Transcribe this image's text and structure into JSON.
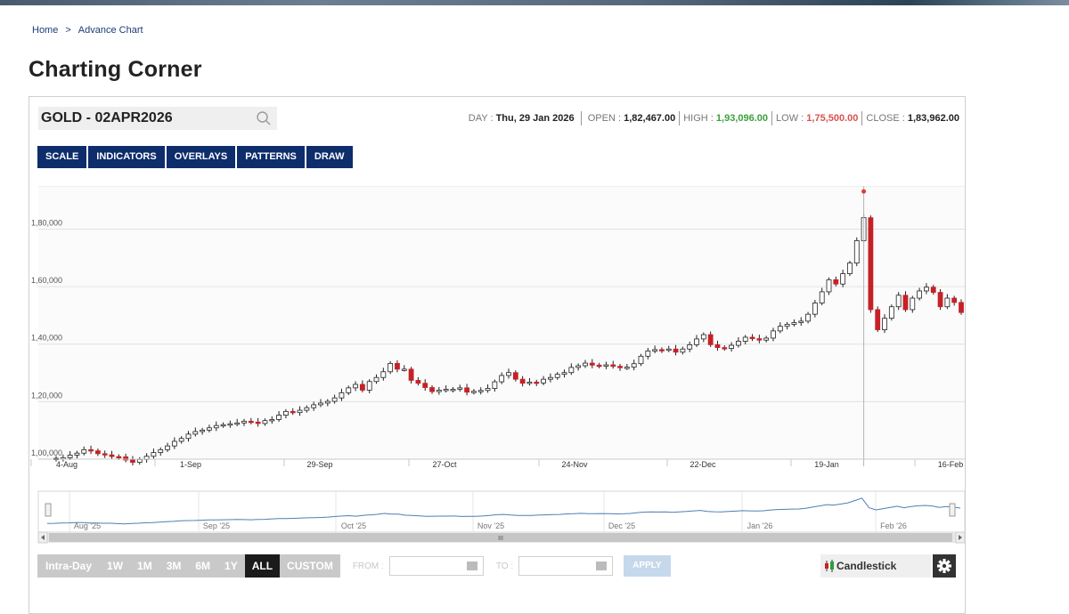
{
  "breadcrumb": {
    "home": "Home",
    "separator": ">",
    "current": "Advance Chart"
  },
  "page_title": "Charting Corner",
  "symbol": {
    "name": "GOLD - 02APR2026",
    "search_icon": "search-icon"
  },
  "ohlc": {
    "day_label": "DAY :",
    "day_value": "Thu, 29 Jan 2026",
    "open_label": "OPEN :",
    "open_value": "1,82,467.00",
    "high_label": "HIGH :",
    "high_value": "1,93,096.00",
    "low_label": "LOW :",
    "low_value": "1,75,500.00",
    "close_label": "CLOSE :",
    "close_value": "1,83,962.00",
    "high_color": "#3aa13a",
    "low_color": "#d9534f"
  },
  "toolbar": [
    "SCALE",
    "INDICATORS",
    "OVERLAYS",
    "PATTERNS",
    "DRAW"
  ],
  "range_buttons": [
    {
      "label": "Intra-Day",
      "active": false
    },
    {
      "label": "1W",
      "active": false
    },
    {
      "label": "1M",
      "active": false
    },
    {
      "label": "3M",
      "active": false
    },
    {
      "label": "6M",
      "active": false
    },
    {
      "label": "1Y",
      "active": false
    },
    {
      "label": "ALL",
      "active": true
    },
    {
      "label": "CUSTOM",
      "active": false
    }
  ],
  "from_label": "FROM :",
  "to_label": "TO :",
  "apply_label": "APPLY",
  "chart_type_label": "Candlestick",
  "colors": {
    "nav": "#0d2d6b",
    "up": "#ffffff",
    "down": "#c62127",
    "navigator": "#4e7fb1"
  },
  "chart_data": {
    "type": "candlestick",
    "y_ticks": [
      "1,00,000",
      "1,20,000",
      "1,40,000",
      "1,60,000",
      "1,80,000"
    ],
    "ylim": [
      100000,
      195000
    ],
    "x_ticks": [
      "4-Aug",
      "1-Sep",
      "29-Sep",
      "27-Oct",
      "24-Nov",
      "22-Dec",
      "19-Jan",
      "16-Feb"
    ],
    "navigator_ticks": [
      "Aug '25",
      "Sep '25",
      "Oct '25",
      "Nov '25",
      "Dec '25",
      "Jan '26",
      "Feb '26"
    ],
    "scrollbar_grip": "III",
    "closes": [
      100300,
      100500,
      101400,
      102100,
      103300,
      102900,
      101900,
      101500,
      100900,
      100800,
      99700,
      98900,
      99900,
      101000,
      102300,
      103300,
      104600,
      106200,
      107200,
      108700,
      109600,
      110100,
      110900,
      111700,
      112000,
      112300,
      112600,
      113200,
      112900,
      112400,
      113400,
      113800,
      115300,
      116600,
      116200,
      117000,
      117900,
      118900,
      119500,
      120100,
      121300,
      123100,
      124800,
      126000,
      124000,
      127000,
      128400,
      130400,
      133300,
      131300,
      131300,
      127400,
      126400,
      124900,
      123500,
      124000,
      124300,
      124300,
      124800,
      123300,
      123600,
      123900,
      124600,
      126900,
      129100,
      130100,
      127800,
      126400,
      126800,
      126500,
      127800,
      128400,
      129500,
      130100,
      131900,
      132500,
      133400,
      132700,
      132400,
      132800,
      132300,
      131800,
      132000,
      133200,
      135800,
      137600,
      138100,
      138000,
      138300,
      137200,
      138300,
      139800,
      141800,
      143300,
      139800,
      138800,
      138500,
      139600,
      141000,
      142400,
      141900,
      141400,
      142100,
      144600,
      146200,
      146900,
      147500,
      148000,
      150400,
      154300,
      158200,
      162400,
      160900,
      164500,
      168200,
      176000,
      183962,
      152000,
      145000,
      149000,
      153000,
      157000,
      152000,
      156000,
      158500,
      159800,
      158000,
      153000,
      156000,
      154500,
      151000
    ]
  }
}
